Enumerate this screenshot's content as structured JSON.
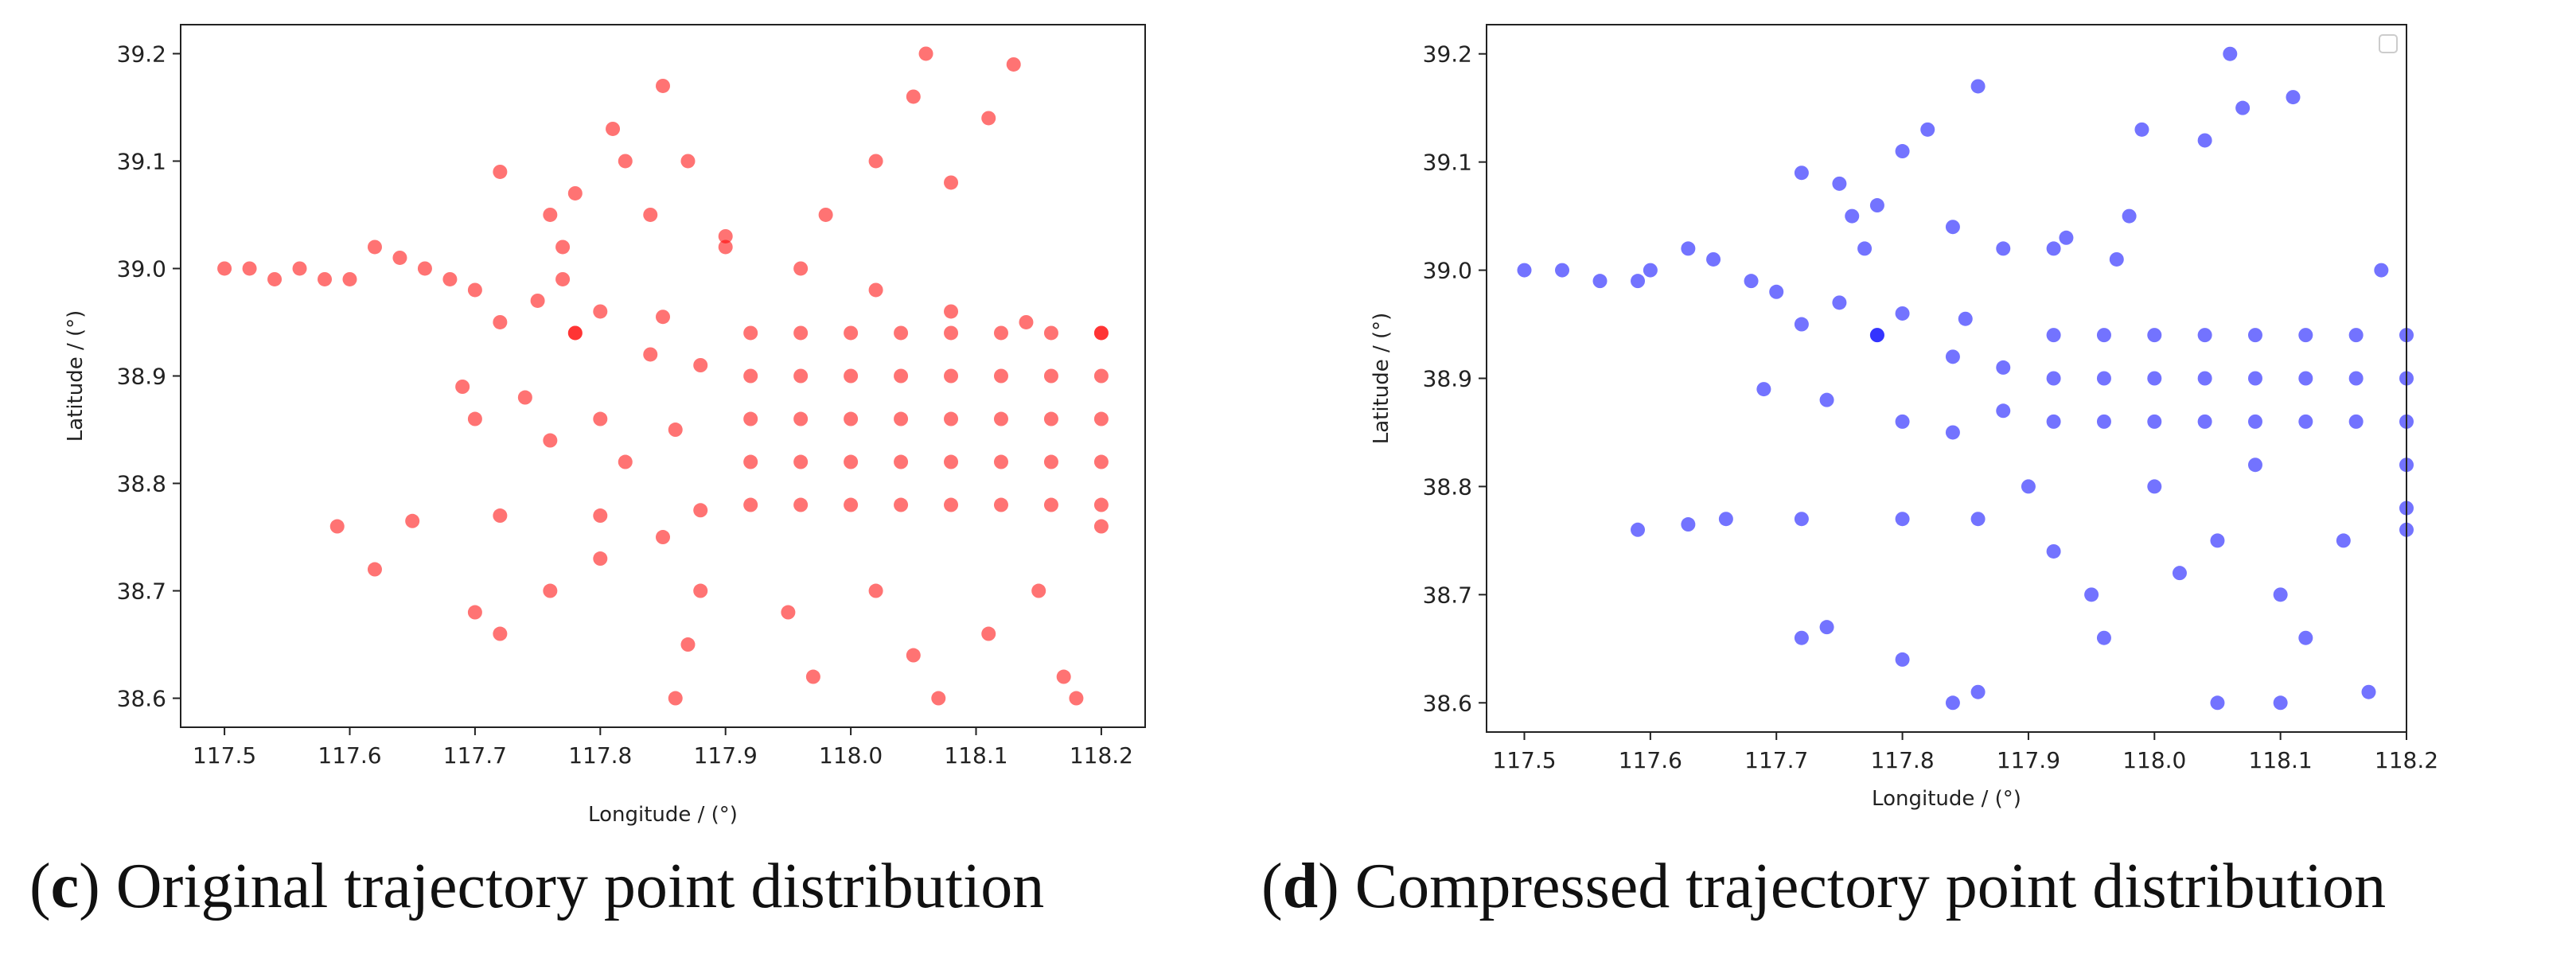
{
  "chart_data": [
    {
      "type": "scatter",
      "color": "#ff0000",
      "xlabel": "Longitude / (°)",
      "ylabel": "Latitude / (°)",
      "caption": [
        "(",
        "c",
        ") Original trajectory point distribution"
      ],
      "xlim": [
        117.465,
        118.235
      ],
      "ylim": [
        38.573,
        39.227
      ],
      "xticks": [
        117.5,
        117.6,
        117.7,
        117.8,
        117.9,
        {
          "value": 118,
          "label": "118.0"
        },
        118.1,
        118.2
      ],
      "yticks": [
        38.6,
        38.7,
        38.8,
        38.9,
        {
          "value": 39,
          "label": "39.0"
        },
        39.1,
        39.2
      ],
      "x": [
        117.5,
        117.52,
        117.54,
        117.56,
        117.58,
        117.6,
        117.62,
        117.64,
        117.66,
        117.68,
        117.72,
        117.78,
        117.84,
        117.9,
        117.96,
        118.02,
        118.08,
        118.14,
        118.2,
        117.7,
        117.75,
        117.8,
        117.85,
        117.72,
        117.78,
        117.84,
        117.88,
        117.76,
        117.77,
        117.77,
        117.78,
        117.92,
        117.92,
        117.92,
        117.92,
        117.92,
        117.96,
        117.96,
        117.96,
        117.96,
        117.96,
        118.0,
        118.0,
        118.0,
        118.0,
        118.0,
        118.04,
        118.04,
        118.04,
        118.04,
        118.04,
        118.08,
        118.08,
        118.08,
        118.08,
        118.08,
        118.12,
        118.12,
        118.12,
        118.12,
        118.12,
        118.16,
        118.16,
        118.16,
        118.16,
        118.16,
        118.2,
        118.2,
        118.2,
        118.2,
        118.2,
        117.59,
        117.65,
        117.72,
        117.8,
        117.88,
        118.2,
        117.69,
        117.74,
        117.8,
        117.86,
        117.7,
        117.76,
        117.82,
        117.88,
        117.87,
        117.86,
        117.95,
        117.97,
        118.02,
        118.05,
        118.07,
        118.15,
        118.17,
        118.18,
        118.11,
        117.98,
        118.02,
        118.05,
        118.06,
        118.08,
        118.11,
        118.13,
        117.82,
        117.81,
        117.85,
        117.87,
        117.9,
        117.7,
        117.72,
        117.76,
        117.8,
        117.85,
        117.62
      ],
      "values": [
        39.0,
        39.0,
        38.99,
        39.0,
        38.99,
        38.99,
        39.02,
        39.01,
        39.0,
        38.99,
        39.09,
        39.07,
        39.05,
        39.02,
        39.0,
        38.98,
        38.96,
        38.95,
        38.94,
        38.98,
        38.97,
        38.96,
        38.955,
        38.95,
        38.94,
        38.92,
        38.91,
        39.05,
        39.02,
        38.99,
        38.94,
        38.78,
        38.82,
        38.86,
        38.9,
        38.94,
        38.78,
        38.82,
        38.86,
        38.9,
        38.94,
        38.78,
        38.82,
        38.86,
        38.9,
        38.94,
        38.78,
        38.82,
        38.86,
        38.9,
        38.94,
        38.78,
        38.82,
        38.86,
        38.9,
        38.94,
        38.78,
        38.82,
        38.86,
        38.9,
        38.94,
        38.78,
        38.82,
        38.86,
        38.9,
        38.94,
        38.78,
        38.82,
        38.86,
        38.9,
        38.94,
        38.76,
        38.765,
        38.77,
        38.77,
        38.775,
        38.76,
        38.89,
        38.88,
        38.86,
        38.85,
        38.86,
        38.84,
        38.82,
        38.7,
        38.65,
        38.6,
        38.68,
        38.62,
        38.7,
        38.64,
        38.6,
        38.7,
        38.62,
        38.6,
        38.66,
        39.05,
        39.1,
        39.16,
        39.2,
        39.08,
        39.14,
        39.19,
        39.1,
        39.13,
        39.17,
        39.1,
        39.03,
        38.68,
        38.66,
        38.7,
        38.73,
        38.75,
        38.72
      ]
    },
    {
      "type": "scatter",
      "color": "#0000ff",
      "xlabel": "Longitude / (°)",
      "ylabel": "Latitude / (°)",
      "caption": [
        "(",
        "d",
        ") Compressed trajectory point distribution"
      ],
      "xlim": [
        117.47,
        118.2
      ],
      "ylim": [
        38.573,
        39.227
      ],
      "xticks": [
        117.5,
        117.6,
        117.7,
        117.8,
        117.9,
        {
          "value": 118,
          "label": "118.0"
        },
        118.1,
        118.2
      ],
      "yticks": [
        38.6,
        38.7,
        38.8,
        38.9,
        {
          "value": 39,
          "label": "39.0"
        },
        39.1,
        39.2
      ],
      "x": [
        117.5,
        117.53,
        117.56,
        117.59,
        117.6,
        117.63,
        117.65,
        117.68,
        117.72,
        117.75,
        117.78,
        117.8,
        117.84,
        117.88,
        117.93,
        117.97,
        117.7,
        117.75,
        117.8,
        117.85,
        117.72,
        117.78,
        117.84,
        117.88,
        117.76,
        117.77,
        117.78,
        117.92,
        117.92,
        117.92,
        117.96,
        117.96,
        117.96,
        118.0,
        118.0,
        118.0,
        118.04,
        118.04,
        118.04,
        118.08,
        118.08,
        118.08,
        118.12,
        118.12,
        118.12,
        118.16,
        118.16,
        118.16,
        118.2,
        118.2,
        118.2,
        118.2,
        118.2,
        117.69,
        117.74,
        117.8,
        117.84,
        117.88,
        117.59,
        117.63,
        117.66,
        117.72,
        117.8,
        117.86,
        117.84,
        117.86,
        118.05,
        118.1,
        118.17,
        117.95,
        118.0,
        118.05,
        117.9,
        118.1,
        118.15,
        117.96,
        117.72,
        117.74,
        118.2,
        118.07,
        118.11,
        117.99,
        117.82,
        117.86,
        118.04,
        118.06,
        117.98,
        118.18,
        117.92,
        118.02,
        117.8,
        118.12,
        117.92,
        118.08
      ],
      "values": [
        39.0,
        39.0,
        38.99,
        38.99,
        39.0,
        39.02,
        39.01,
        38.99,
        39.09,
        39.08,
        39.06,
        39.11,
        39.04,
        39.02,
        39.03,
        39.01,
        38.98,
        38.97,
        38.96,
        38.955,
        38.95,
        38.94,
        38.92,
        38.91,
        39.05,
        39.02,
        38.94,
        38.86,
        38.9,
        38.94,
        38.86,
        38.9,
        38.94,
        38.86,
        38.9,
        38.94,
        38.86,
        38.9,
        38.94,
        38.86,
        38.9,
        38.94,
        38.86,
        38.9,
        38.94,
        38.86,
        38.9,
        38.94,
        38.86,
        38.9,
        38.94,
        38.78,
        38.82,
        38.89,
        38.88,
        38.86,
        38.85,
        38.87,
        38.76,
        38.765,
        38.77,
        38.77,
        38.77,
        38.77,
        38.6,
        38.61,
        38.6,
        38.6,
        38.61,
        38.7,
        38.8,
        38.75,
        38.8,
        38.7,
        38.75,
        38.66,
        38.66,
        38.67,
        38.76,
        39.15,
        39.16,
        39.13,
        39.13,
        39.17,
        39.12,
        39.2,
        39.05,
        39.0,
        39.02,
        38.72,
        38.64,
        38.66,
        38.74,
        38.82
      ]
    }
  ]
}
